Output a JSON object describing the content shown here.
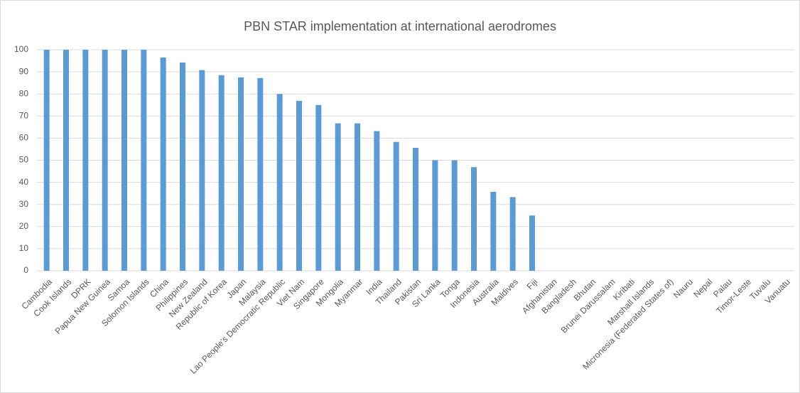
{
  "chart_data": {
    "type": "bar",
    "title": "PBN STAR implementation at international aerodromes",
    "categories": [
      "Cambodia",
      "Cook Islands",
      "DPRK",
      "Papua New Guinea",
      "Samoa",
      "Solomon Islands",
      "China",
      "Philippines",
      "New Zealand",
      "Republic of Korea",
      "Japan",
      "Malaysia",
      "Lao People's Democratic Republic",
      "Viet Nam",
      "Singapore",
      "Mongolia",
      "Myanmar",
      "India",
      "Thailand",
      "Pakistan",
      "Sri Lanka",
      "Tonga",
      "Indonesia",
      "Australia",
      "Maldives",
      "Fiji",
      "Afghanistan",
      "Bangladesh",
      "Bhutan",
      "Brunei Darussalam",
      "Kiribati",
      "Marshall Islands",
      "Micronesia (Federated States of)",
      "Nauru",
      "Nepal",
      "Palau",
      "Timor-Leste",
      "Tuvalu",
      "Vanuatu"
    ],
    "values": [
      100,
      100,
      100,
      100,
      100,
      100,
      96.5,
      94.2,
      90.8,
      88.5,
      87.5,
      87.2,
      80,
      76.9,
      75,
      66.7,
      66.7,
      63.2,
      58.3,
      55.6,
      50,
      50,
      46.9,
      35.7,
      33.3,
      25,
      0,
      0,
      0,
      0,
      0,
      0,
      0,
      0,
      0,
      0,
      0,
      0,
      0
    ],
    "color": "#5b9bd5",
    "ylim": [
      0,
      100
    ],
    "yticks": [
      0,
      10,
      20,
      30,
      40,
      50,
      60,
      70,
      80,
      90,
      100
    ],
    "grid": true
  }
}
